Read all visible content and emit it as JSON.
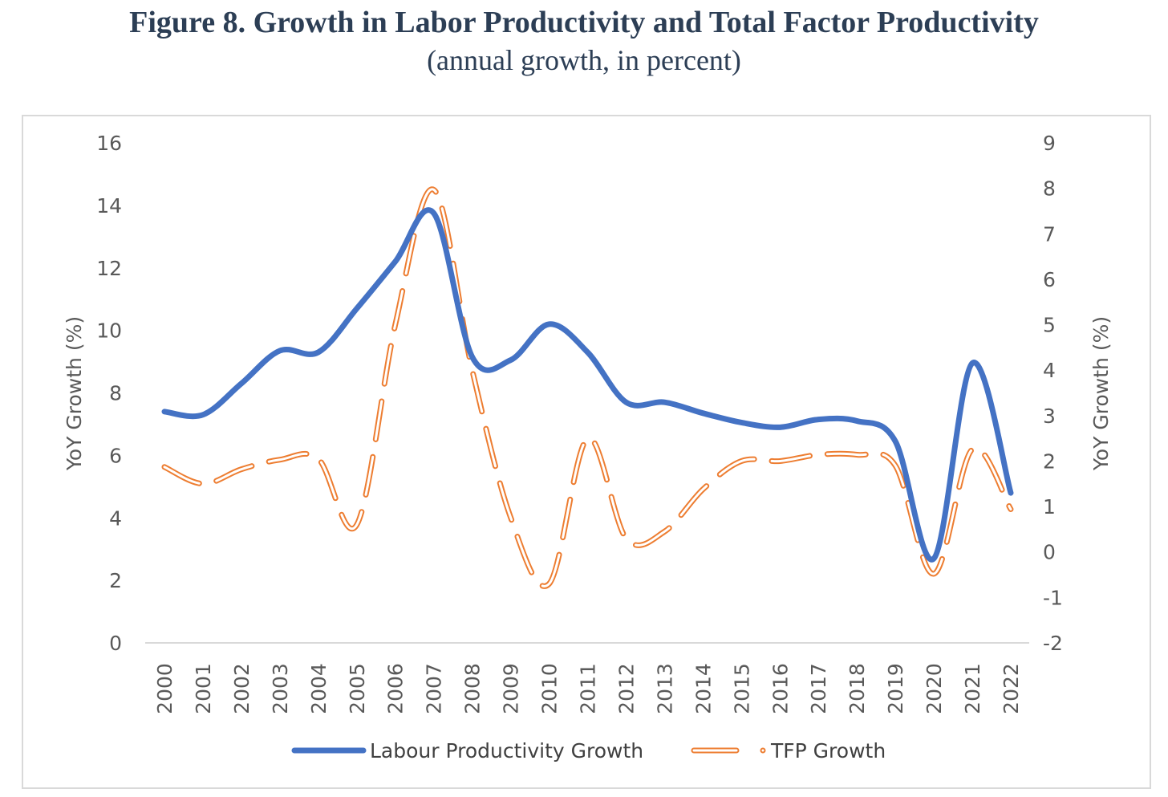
{
  "title": "Figure 8. Growth in Labor Productivity and Total Factor Productivity",
  "subtitle": "(annual growth, in percent)",
  "colors": {
    "labour": "#4472c4",
    "tfp": "#ed7d31"
  },
  "chart_data": {
    "type": "line",
    "title": "Figure 8. Growth in Labor Productivity and Total Factor Productivity",
    "subtitle": "(annual growth, in percent)",
    "x": [
      "2000",
      "2001",
      "2002",
      "2003",
      "2004",
      "2005",
      "2006",
      "2007",
      "2008",
      "2009",
      "2010",
      "2011",
      "2012",
      "2013",
      "2014",
      "2015",
      "2016",
      "2017",
      "2018",
      "2019",
      "2020",
      "2021",
      "2022"
    ],
    "ylabel": "YoY Growth (%)",
    "y2label": "YoY Growth (%)",
    "ylim": [
      0,
      16
    ],
    "y2lim": [
      -2,
      9
    ],
    "yticks": [
      "0",
      "2",
      "4",
      "6",
      "8",
      "10",
      "12",
      "14",
      "16"
    ],
    "y2ticks": [
      "-2",
      "-1",
      "0",
      "1",
      "2",
      "3",
      "4",
      "5",
      "6",
      "7",
      "8",
      "9"
    ],
    "legend": "bottom",
    "series": [
      {
        "name": "Labour Productivity Growth",
        "axis": "left",
        "values": [
          7.4,
          7.3,
          8.3,
          9.35,
          9.3,
          10.7,
          12.2,
          13.75,
          9.15,
          9.05,
          10.2,
          9.3,
          7.7,
          7.7,
          7.35,
          7.05,
          6.9,
          7.15,
          7.1,
          6.45,
          2.7,
          8.95,
          4.8
        ]
      },
      {
        "name": "TFP Growth",
        "axis": "right",
        "values": [
          1.87,
          1.5,
          1.82,
          2.03,
          2.05,
          0.6,
          5.0,
          7.97,
          4.0,
          0.76,
          -0.7,
          2.5,
          0.3,
          0.45,
          1.38,
          2.0,
          2.0,
          2.14,
          2.14,
          1.9,
          -0.48,
          2.26,
          0.94
        ]
      }
    ]
  }
}
